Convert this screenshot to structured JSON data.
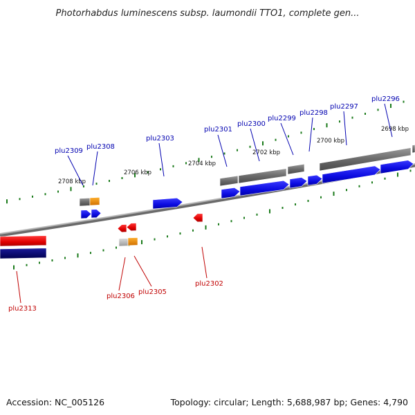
{
  "title": "Photorhabdus luminescens subsp. laumondii TTO1, complete gen...",
  "footer": {
    "accession": "Accession: NC_005126",
    "summary": "Topology: circular; Length: 5,688,987 bp; Genes: 4,790"
  },
  "colors": {
    "forward_cds": "#0b0bea",
    "reverse_cds": "#e60000",
    "gene_bar": "#6e6e6e",
    "rna_bar": "#f0900a",
    "backbone": "#8a8a8a",
    "tick": "#1a7a1a",
    "forward_label": "#0000b0",
    "reverse_label": "#c00000",
    "reverse_gene_bar": "#e60000",
    "navy_bar": "#000070"
  },
  "kbp_labels": [
    "2708 kbp",
    "2706 kbp",
    "2704 kbp",
    "2702 kbp",
    "2700 kbp",
    "2698 kbp"
  ],
  "forward_genes": [
    "plu2309",
    "plu2308",
    "plu2303",
    "plu2301",
    "plu2300",
    "plu2299",
    "plu2298",
    "plu2297",
    "plu2296"
  ],
  "reverse_genes": [
    "plu2306",
    "plu2305",
    "plu2302",
    "plu2313"
  ]
}
